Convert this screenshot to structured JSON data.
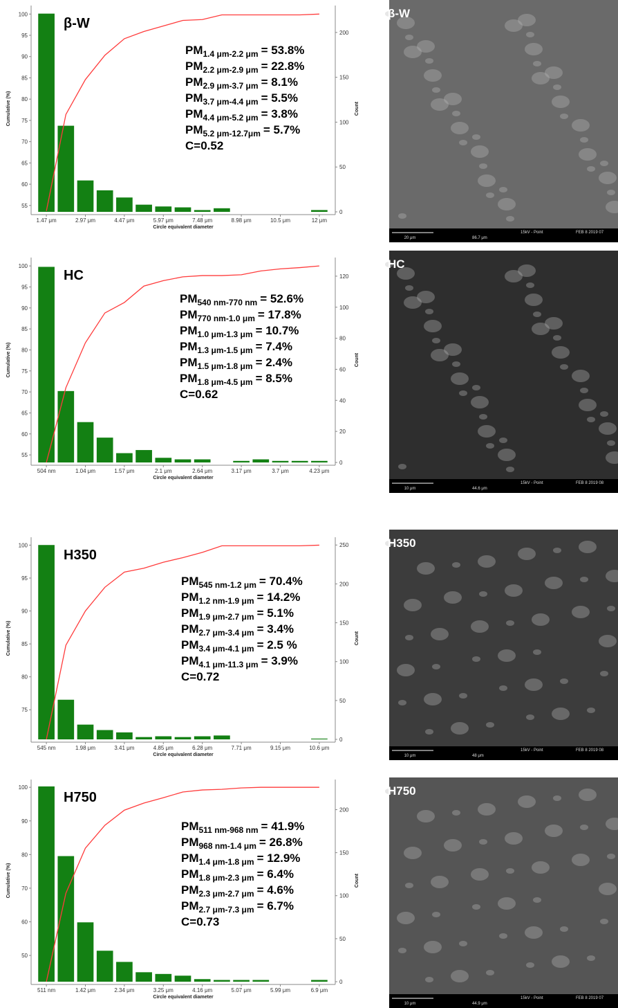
{
  "chart_data": [
    {
      "type": "bar_line",
      "label": "β-W",
      "x_label": "Circle equivalent diameter",
      "y_label": "Cumulative (%)",
      "y2_label": "Count",
      "categories": [
        "1.47 μm",
        null,
        "2.97 μm",
        null,
        "4.47 μm",
        null,
        "5.97 μm",
        null,
        "7.48 μm",
        null,
        "8.98 μm",
        null,
        "10.5 μm",
        null,
        "12 μm"
      ],
      "ylim": [
        53.5,
        102
      ],
      "yticks": [
        55,
        60,
        65,
        70,
        75,
        80,
        85,
        90,
        95,
        100
      ],
      "y2lim": [
        0,
        230
      ],
      "y2ticks": [
        0,
        50,
        100,
        150,
        200
      ],
      "series": [
        {
          "type": "bar",
          "axis": "y2",
          "color": "#138013",
          "values": [
            221,
            96,
            35,
            24,
            16,
            8,
            6,
            5,
            2,
            4,
            0,
            0,
            0,
            0,
            2
          ]
        },
        {
          "type": "line",
          "color": "#ff3b3b",
          "values": [
            53.7,
            76.4,
            84.6,
            90.3,
            94.2,
            95.9,
            97.2,
            98.5,
            98.7,
            99.8,
            99.8,
            99.8,
            99.8,
            99.8,
            100
          ]
        }
      ],
      "annotations": [
        {
          "prefix": "PM",
          "subscript": "1.4 μm-2.2 μm",
          "suffix": "= 53.8%"
        },
        {
          "prefix": "PM",
          "subscript": "2.2 μm-2.9 μm",
          "suffix": "= 22.8%"
        },
        {
          "prefix": "PM",
          "subscript": "2.9 μm-3.7 μm",
          "suffix": "= 8.1%"
        },
        {
          "prefix": "PM",
          "subscript": "3.7 μm-4.4 μm",
          "suffix": "= 5.5%"
        },
        {
          "prefix": "PM",
          "subscript": "4.4 μm-5.2 μm",
          "suffix": "= 3.8%"
        },
        {
          "prefix": "PM",
          "subscript": "5.2 μm-12.7μm",
          "suffix": "= 5.7%"
        }
      ],
      "coefficient": "C=0.52"
    },
    {
      "type": "bar_line",
      "label": "HC",
      "x_label": "Circle equivalent diameter",
      "y_label": "Cumulative (%)",
      "y2_label": "Count",
      "categories": [
        "504 nm",
        null,
        "1.04 μm",
        null,
        "1.57 μm",
        null,
        "2.1 μm",
        null,
        "2.64 μm",
        null,
        "3.17 μm",
        null,
        "3.7 μm",
        null,
        "4.23 μm"
      ],
      "ylim": [
        53.2,
        102
      ],
      "yticks": [
        55,
        60,
        65,
        70,
        75,
        80,
        85,
        90,
        95,
        100
      ],
      "y2lim": [
        0,
        132
      ],
      "y2ticks": [
        0,
        20,
        40,
        60,
        80,
        100,
        120
      ],
      "series": [
        {
          "type": "bar",
          "axis": "y2",
          "color": "#138013",
          "values": [
            126,
            46,
            26,
            16,
            6,
            8,
            3,
            2,
            2,
            0,
            1,
            2,
            1,
            1,
            1
          ]
        },
        {
          "type": "line",
          "color": "#ff3b3b",
          "values": [
            53.2,
            71.0,
            81.7,
            88.8,
            91.3,
            95.2,
            96.5,
            97.4,
            97.7,
            97.7,
            97.9,
            98.8,
            99.3,
            99.6,
            100
          ]
        }
      ],
      "annotations": [
        {
          "prefix": "PM",
          "subscript": "540 nm-770 nm",
          "suffix": "= 52.6%"
        },
        {
          "prefix": "PM",
          "subscript": "770 nm-1.0 μm",
          "suffix": "= 17.8%"
        },
        {
          "prefix": "PM",
          "subscript": "1.0 μm-1.3 μm",
          "suffix": "= 10.7%"
        },
        {
          "prefix": "PM",
          "subscript": "1.3 μm-1.5 μm",
          "suffix": "= 7.4%"
        },
        {
          "prefix": "PM",
          "subscript": "1.5 μm-1.8 μm",
          "suffix": "= 2.4%"
        },
        {
          "prefix": "PM",
          "subscript": "1.8 μm-4.5 μm",
          "suffix": "= 8.5%"
        }
      ],
      "coefficient": "C=0.62"
    },
    {
      "type": "bar_line",
      "label": "H350",
      "x_label": "Circle equivalent diameter",
      "y_label": "Cumulative (%)",
      "y2_label": "Count",
      "categories": [
        "545 nm",
        null,
        "1.98 μm",
        null,
        "3.41 μm",
        null,
        "4.85 μm",
        null,
        "6.28 μm",
        null,
        "7.71 μm",
        null,
        "9.15 μm",
        null,
        "10.6 μm"
      ],
      "ylim": [
        70.5,
        101.2
      ],
      "yticks": [
        75,
        80,
        85,
        90,
        95,
        100
      ],
      "y2lim": [
        0,
        260
      ],
      "y2ticks": [
        0,
        50,
        100,
        150,
        200,
        250
      ],
      "series": [
        {
          "type": "bar",
          "axis": "y2",
          "color": "#138013",
          "values": [
            250,
            51,
            19,
            12,
            9,
            3,
            4,
            3,
            4,
            5,
            0,
            0,
            0,
            0,
            1
          ]
        },
        {
          "type": "line",
          "color": "#ff3b3b",
          "values": [
            70.5,
            84.8,
            90.0,
            93.6,
            95.9,
            96.5,
            97.4,
            98.1,
            98.9,
            99.9,
            99.9,
            99.9,
            99.9,
            99.9,
            100
          ]
        }
      ],
      "annotations": [
        {
          "prefix": "PM",
          "subscript": "545 nm-1.2 μm",
          "suffix": "= 70.4%"
        },
        {
          "prefix": "PM",
          "subscript": "1.2 nm-1.9 μm",
          "suffix": "= 14.2%"
        },
        {
          "prefix": "PM",
          "subscript": "1.9 μm-2.7 μm",
          "suffix": "= 5.1%"
        },
        {
          "prefix": "PM",
          "subscript": "2.7 μm-3.4 μm",
          "suffix": "= 3.4%"
        },
        {
          "prefix": "PM",
          "subscript": "3.4 μm-4.1 μm",
          "suffix": "= 2.5 %"
        },
        {
          "prefix": "PM",
          "subscript": "4.1 μm-11.3 μm",
          "suffix": "= 3.9%"
        }
      ],
      "coefficient": "C=0.72"
    },
    {
      "type": "bar_line",
      "label": "H750",
      "x_label": "Circle equivalent diameter",
      "y_label": "Cumulative (%)",
      "y2_label": "Count",
      "categories": [
        "511 nm",
        null,
        "1.42 μm",
        null,
        "2.34 μm",
        null,
        "3.25 μm",
        null,
        "4.16 μm",
        null,
        "5.07 μm",
        null,
        "5.99 μm",
        null,
        "6.9 μm"
      ],
      "ylim": [
        42.2,
        102.3
      ],
      "yticks": [
        50,
        60,
        70,
        80,
        90,
        100
      ],
      "y2lim": [
        0,
        235
      ],
      "y2ticks": [
        0,
        50,
        100,
        150,
        200
      ],
      "series": [
        {
          "type": "bar",
          "axis": "y2",
          "color": "#138013",
          "values": [
            227,
            146,
            69,
            36,
            23,
            11,
            9,
            7,
            3,
            2,
            2,
            2,
            0,
            0,
            2
          ]
        },
        {
          "type": "line",
          "color": "#ff3b3b",
          "values": [
            42.2,
            68.5,
            81.9,
            88.7,
            93.2,
            95.3,
            96.9,
            98.6,
            99.2,
            99.4,
            99.8,
            100,
            100,
            100,
            100
          ]
        }
      ],
      "annotations": [
        {
          "prefix": "PM",
          "subscript": "511 nm-968 nm",
          "suffix": "= 41.9%"
        },
        {
          "prefix": "PM",
          "subscript": "968 nm-1.4 μm",
          "suffix": "= 26.8%"
        },
        {
          "prefix": "PM",
          "subscript": "1.4 μm-1.8 μm",
          "suffix": "= 12.9%"
        },
        {
          "prefix": "PM",
          "subscript": "1.8 μm-2.3 μm",
          "suffix": "= 6.4%"
        },
        {
          "prefix": "PM",
          "subscript": "2.3 μm-2.7 μm",
          "suffix": "= 4.6%"
        },
        {
          "prefix": "PM",
          "subscript": "2.7 μm-7.3 μm",
          "suffix": "= 6.7%"
        }
      ],
      "coefficient": "C=0.73"
    }
  ],
  "images": [
    {
      "label": "β-W",
      "scale": "20 μm",
      "field": "86.7 μm",
      "beam": "15kV - Point",
      "date": "FEB 8 2019 07"
    },
    {
      "label": "HC",
      "scale": "10 μm",
      "field": "44.6 μm",
      "beam": "15kV - Point",
      "date": "FEB 8 2019 08"
    },
    {
      "label": "H350",
      "scale": "10 μm",
      "field": "48 μm",
      "beam": "15kV - Point",
      "date": "FEB 8 2019 08"
    },
    {
      "label": "H750",
      "scale": "10 μm",
      "field": "44.9 μm",
      "beam": "15kV - Point",
      "date": "FEB 8 2019 07"
    }
  ]
}
